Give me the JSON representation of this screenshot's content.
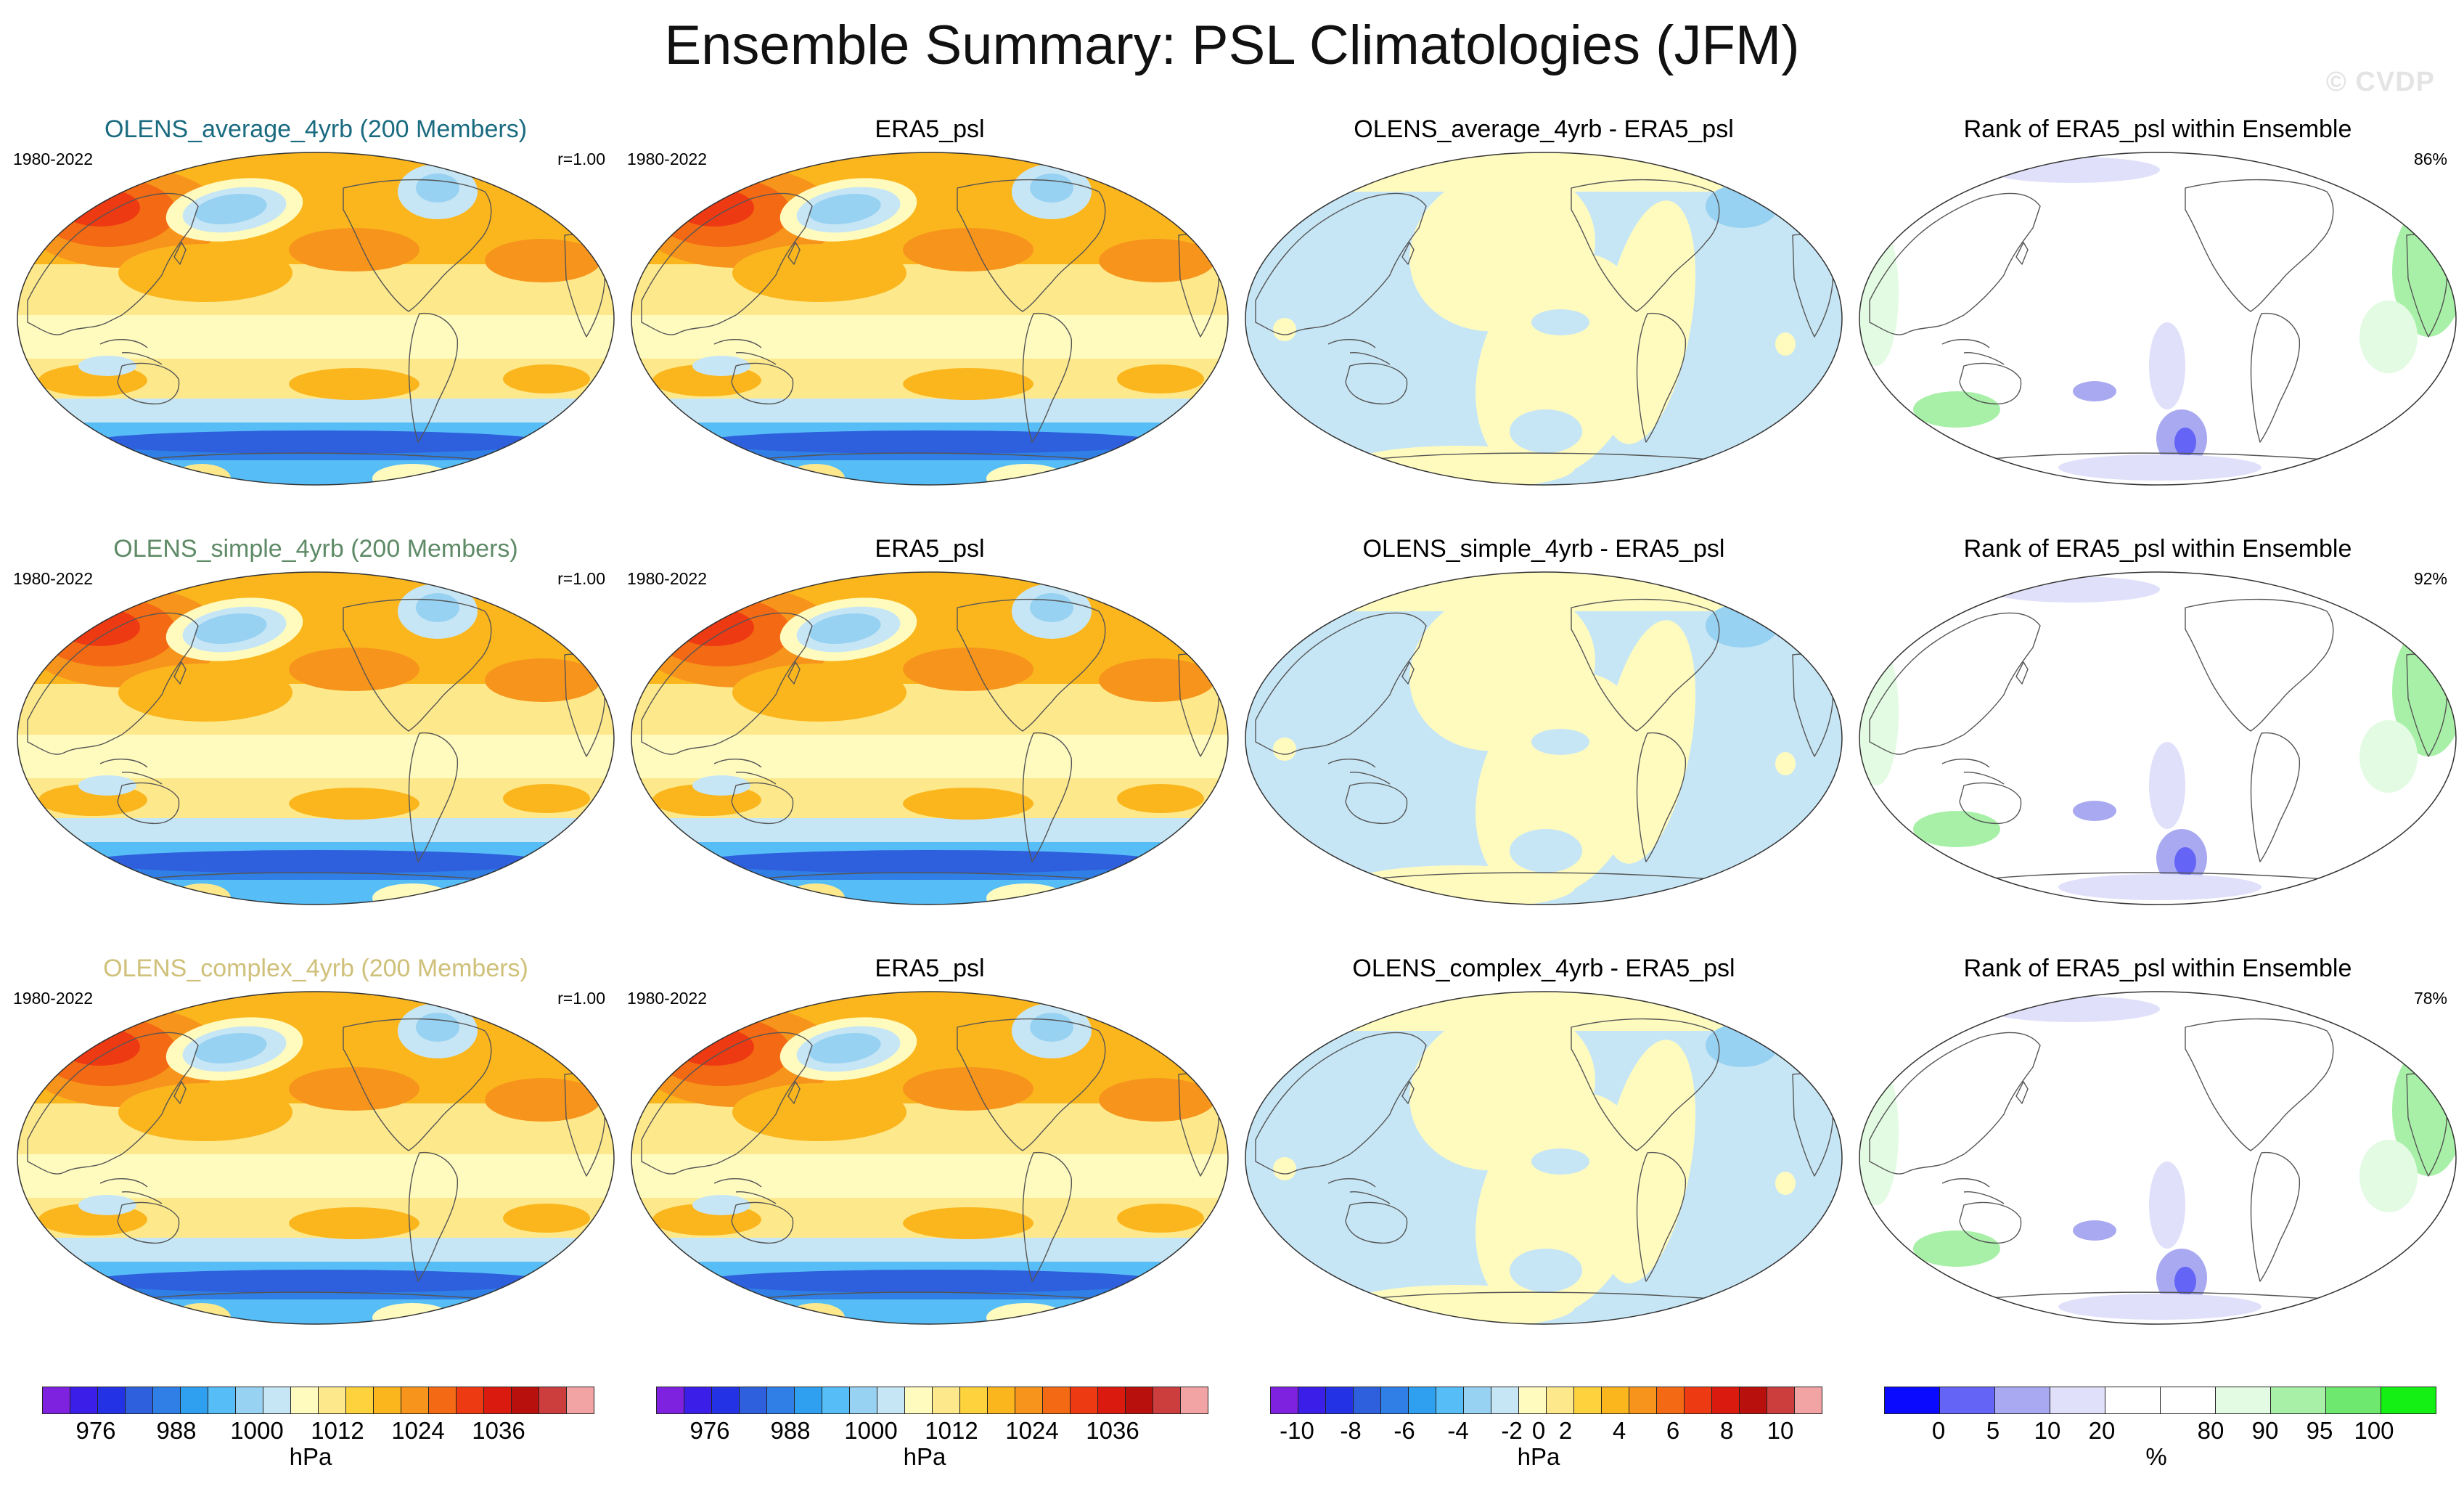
{
  "title": "Ensemble Summary: PSL Climatologies (JFM)",
  "watermark": "© CVDP",
  "rows": [
    {
      "model": {
        "title": "OLENS_average_4yrb (200 Members)",
        "title_color": "#1a6b80",
        "period": "1980-2022",
        "corr": "r=1.00"
      },
      "obs": {
        "title": "ERA5_psl",
        "period": "1980-2022"
      },
      "diff": {
        "title": "OLENS_average_4yrb - ERA5_psl"
      },
      "rank": {
        "title": "Rank of ERA5_psl within Ensemble",
        "pct": "86%"
      }
    },
    {
      "model": {
        "title": "OLENS_simple_4yrb (200 Members)",
        "title_color": "#5e8a66",
        "period": "1980-2022",
        "corr": "r=1.00"
      },
      "obs": {
        "title": "ERA5_psl",
        "period": "1980-2022"
      },
      "diff": {
        "title": "OLENS_simple_4yrb - ERA5_psl"
      },
      "rank": {
        "title": "Rank of ERA5_psl within Ensemble",
        "pct": "92%"
      }
    },
    {
      "model": {
        "title": "OLENS_complex_4yrb (200 Members)",
        "title_color": "#cfc07a",
        "period": "1980-2022",
        "corr": "r=1.00"
      },
      "obs": {
        "title": "ERA5_psl",
        "period": "1980-2022"
      },
      "diff": {
        "title": "OLENS_complex_4yrb - ERA5_psl"
      },
      "rank": {
        "title": "Rank of ERA5_psl within Ensemble",
        "pct": "78%"
      }
    }
  ],
  "colorbars": [
    {
      "colors": [
        "#7e22e0",
        "#3b1ee8",
        "#2432e6",
        "#2e5fdc",
        "#2f7fe6",
        "#2fa0f0",
        "#56bdf6",
        "#98d2f2",
        "#c7e6f5",
        "#fffbbf",
        "#fde98c",
        "#fdd23d",
        "#fbb61e",
        "#f7941c",
        "#f46a14",
        "#ee3a12",
        "#da1a0e",
        "#b8100c",
        "#cc3e3e",
        "#f2a3a3"
      ],
      "ticks": [
        "976",
        "988",
        "1000",
        "1012",
        "1024",
        "1036"
      ],
      "unit": "hPa"
    },
    {
      "colors": [
        "#7e22e0",
        "#3b1ee8",
        "#2432e6",
        "#2e5fdc",
        "#2f7fe6",
        "#2fa0f0",
        "#56bdf6",
        "#98d2f2",
        "#c7e6f5",
        "#fffbbf",
        "#fde98c",
        "#fdd23d",
        "#fbb61e",
        "#f7941c",
        "#f46a14",
        "#ee3a12",
        "#da1a0e",
        "#b8100c",
        "#cc3e3e",
        "#f2a3a3"
      ],
      "ticks": [
        "976",
        "988",
        "1000",
        "1012",
        "1024",
        "1036"
      ],
      "unit": "hPa"
    },
    {
      "colors": [
        "#7e22e0",
        "#3b1ee8",
        "#2432e6",
        "#2e5fdc",
        "#2f7fe6",
        "#2fa0f0",
        "#56bdf6",
        "#98d2f2",
        "#c7e6f5",
        "#fffbbf",
        "#fde98c",
        "#fdd23d",
        "#fbb61e",
        "#f7941c",
        "#f46a14",
        "#ee3a12",
        "#da1a0e",
        "#b8100c",
        "#cc3e3e",
        "#f2a3a3"
      ],
      "ticks": [
        "-10",
        "-8",
        "-6",
        "-4",
        "-2",
        "0",
        "2",
        "4",
        "6",
        "8",
        "10"
      ],
      "unit": "hPa"
    },
    {
      "colors": [
        "#0a0aff",
        "#6464f6",
        "#a9a9f2",
        "#e0e0fa",
        "#ffffff",
        "#ffffff",
        "#e2fbe2",
        "#a8f0a8",
        "#6ee86e",
        "#14f014"
      ],
      "ticks": [
        "0",
        "5",
        "10",
        "20",
        "80",
        "90",
        "95",
        "100"
      ],
      "unit": "%"
    }
  ]
}
